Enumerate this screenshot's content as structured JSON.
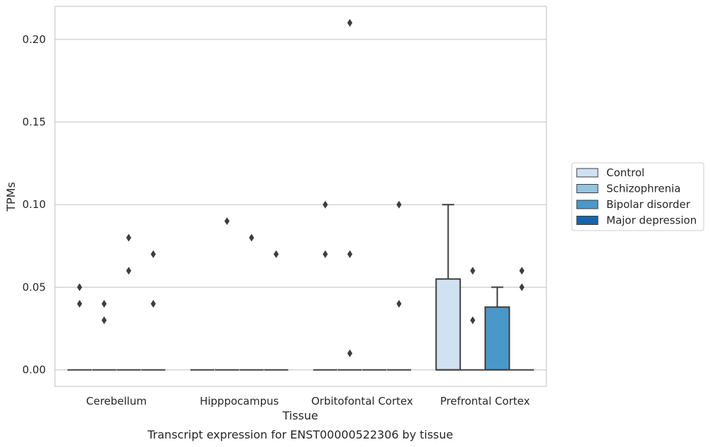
{
  "chart_data": {
    "type": "box",
    "xlabel": "Tissue",
    "ylabel": "TPMs",
    "caption": "Transcript expression for ENST00000522306 by tissue",
    "ylim": [
      -0.01,
      0.22
    ],
    "yticks": [
      "0.00",
      "0.05",
      "0.10",
      "0.15",
      "0.20"
    ],
    "grid": "horizontal",
    "legend_position": "right",
    "categories": [
      "Cerebellum",
      "Hipppocampus",
      "Orbitofontal Cortex",
      "Prefrontal Cortex"
    ],
    "series": [
      {
        "name": "Control",
        "color": "#d0e1f2"
      },
      {
        "name": "Schizophrenia",
        "color": "#94c4df"
      },
      {
        "name": "Bipolar disorder",
        "color": "#4a98c9"
      },
      {
        "name": "Major depression",
        "color": "#1764ab"
      }
    ],
    "boxes": [
      {
        "category": "Cerebellum",
        "series": "Control",
        "q1": 0,
        "median": 0,
        "q3": 0,
        "whisker_low": 0,
        "whisker_high": 0,
        "outliers": [
          0.04,
          0.05
        ]
      },
      {
        "category": "Cerebellum",
        "series": "Schizophrenia",
        "q1": 0,
        "median": 0,
        "q3": 0,
        "whisker_low": 0,
        "whisker_high": 0,
        "outliers": [
          0.03,
          0.04
        ]
      },
      {
        "category": "Cerebellum",
        "series": "Bipolar disorder",
        "q1": 0,
        "median": 0,
        "q3": 0,
        "whisker_low": 0,
        "whisker_high": 0,
        "outliers": [
          0.06,
          0.08
        ]
      },
      {
        "category": "Cerebellum",
        "series": "Major depression",
        "q1": 0,
        "median": 0,
        "q3": 0,
        "whisker_low": 0,
        "whisker_high": 0,
        "outliers": [
          0.04,
          0.07
        ]
      },
      {
        "category": "Hipppocampus",
        "series": "Control",
        "q1": 0,
        "median": 0,
        "q3": 0,
        "whisker_low": 0,
        "whisker_high": 0,
        "outliers": []
      },
      {
        "category": "Hipppocampus",
        "series": "Schizophrenia",
        "q1": 0,
        "median": 0,
        "q3": 0,
        "whisker_low": 0,
        "whisker_high": 0,
        "outliers": [
          0.09
        ]
      },
      {
        "category": "Hipppocampus",
        "series": "Bipolar disorder",
        "q1": 0,
        "median": 0,
        "q3": 0,
        "whisker_low": 0,
        "whisker_high": 0,
        "outliers": [
          0.08
        ]
      },
      {
        "category": "Hipppocampus",
        "series": "Major depression",
        "q1": 0,
        "median": 0,
        "q3": 0,
        "whisker_low": 0,
        "whisker_high": 0,
        "outliers": [
          0.07
        ]
      },
      {
        "category": "Orbitofontal Cortex",
        "series": "Control",
        "q1": 0,
        "median": 0,
        "q3": 0,
        "whisker_low": 0,
        "whisker_high": 0,
        "outliers": [
          0.07,
          0.1
        ]
      },
      {
        "category": "Orbitofontal Cortex",
        "series": "Schizophrenia",
        "q1": 0,
        "median": 0,
        "q3": 0,
        "whisker_low": 0,
        "whisker_high": 0,
        "outliers": [
          0.01,
          0.07,
          0.21
        ]
      },
      {
        "category": "Orbitofontal Cortex",
        "series": "Bipolar disorder",
        "q1": 0,
        "median": 0,
        "q3": 0,
        "whisker_low": 0,
        "whisker_high": 0,
        "outliers": []
      },
      {
        "category": "Orbitofontal Cortex",
        "series": "Major depression",
        "q1": 0,
        "median": 0,
        "q3": 0,
        "whisker_low": 0,
        "whisker_high": 0,
        "outliers": [
          0.04,
          0.1
        ]
      },
      {
        "category": "Prefrontal Cortex",
        "series": "Control",
        "q1": 0,
        "median": 0,
        "q3": 0.055,
        "whisker_low": 0,
        "whisker_high": 0.1,
        "outliers": []
      },
      {
        "category": "Prefrontal Cortex",
        "series": "Schizophrenia",
        "q1": 0,
        "median": 0,
        "q3": 0,
        "whisker_low": 0,
        "whisker_high": 0,
        "outliers": [
          0.03,
          0.06
        ]
      },
      {
        "category": "Prefrontal Cortex",
        "series": "Bipolar disorder",
        "q1": 0,
        "median": 0,
        "q3": 0.038,
        "whisker_low": 0,
        "whisker_high": 0.05,
        "outliers": []
      },
      {
        "category": "Prefrontal Cortex",
        "series": "Major depression",
        "q1": 0,
        "median": 0,
        "q3": 0,
        "whisker_low": 0,
        "whisker_high": 0,
        "outliers": [
          0.05,
          0.06
        ]
      }
    ]
  }
}
